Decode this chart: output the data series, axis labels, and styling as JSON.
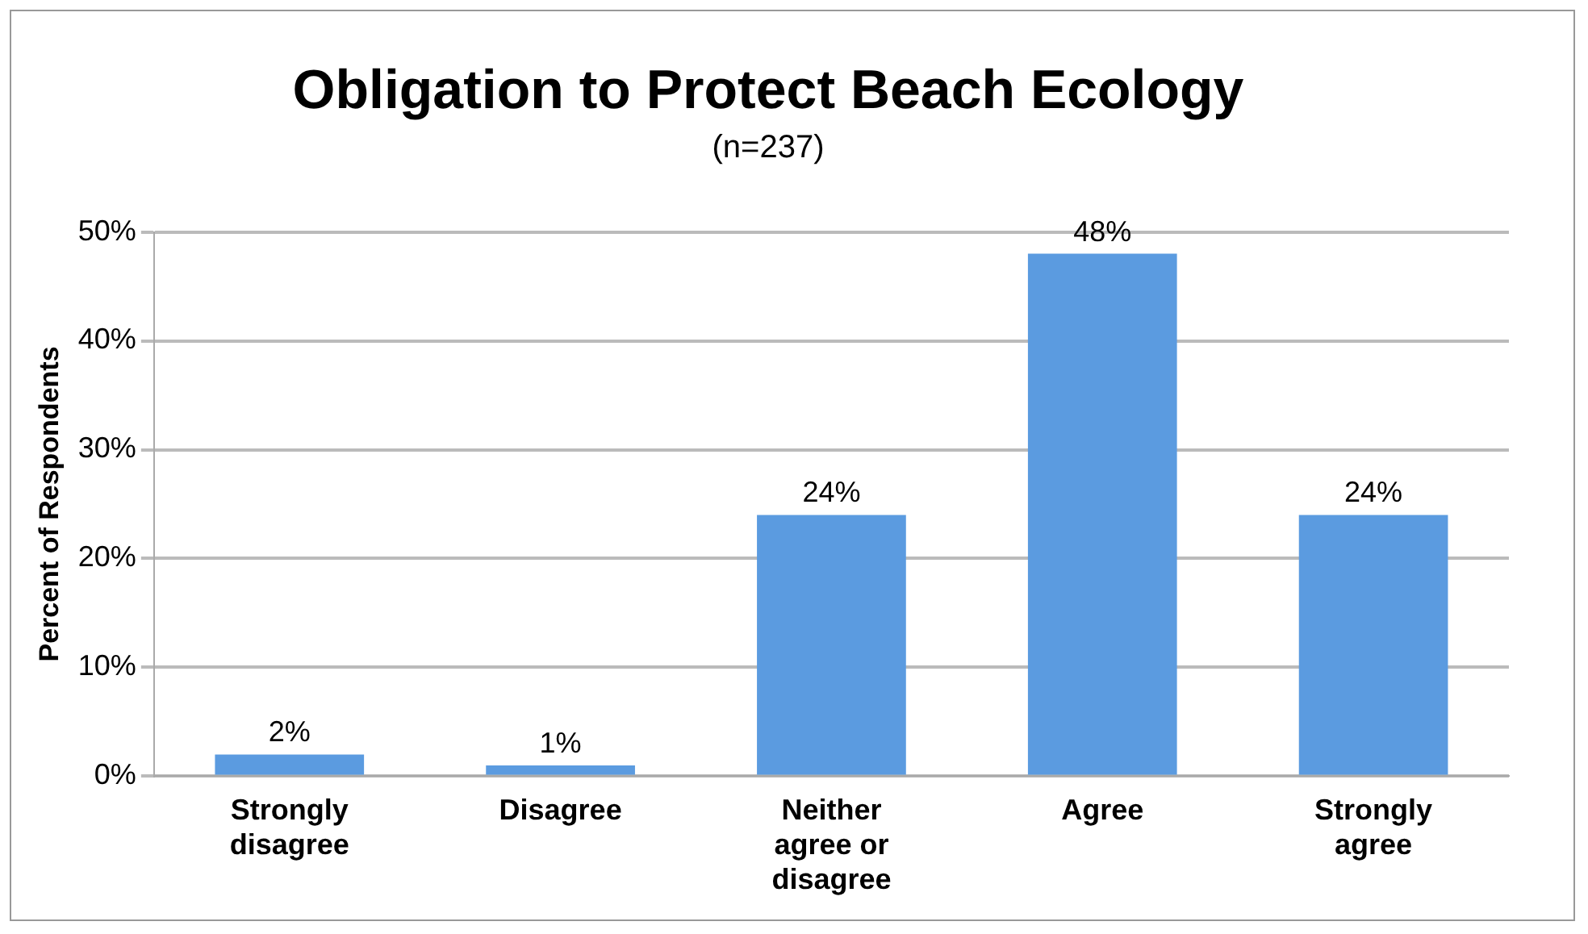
{
  "chart_data": {
    "type": "bar",
    "title": "Obligation to Protect Beach Ecology",
    "subtitle": "(n=237)",
    "ylabel": "Percent of Respondents",
    "categories": [
      "Strongly disagree",
      "Disagree",
      "Neither agree or disagree",
      "Agree",
      "Strongly agree"
    ],
    "values": [
      2,
      1,
      24,
      48,
      24
    ],
    "value_labels": [
      "2%",
      "1%",
      "24%",
      "48%",
      "24%"
    ],
    "color": "#5b9be0",
    "ylim": [
      0,
      50
    ],
    "yticks": [
      {
        "value": 0,
        "label": "0%"
      },
      {
        "value": 10,
        "label": "10%"
      },
      {
        "value": 20,
        "label": "20%"
      },
      {
        "value": 30,
        "label": "30%"
      },
      {
        "value": 40,
        "label": "40%"
      },
      {
        "value": 50,
        "label": "50%"
      }
    ],
    "grid": "y",
    "legend": false
  }
}
